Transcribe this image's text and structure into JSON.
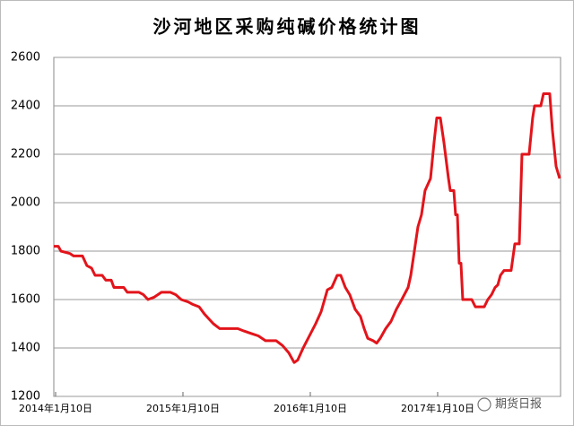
{
  "chart_data": {
    "type": "line",
    "title": "沙河地区采购纯碱价格统计图",
    "x": [
      2013.986,
      2014.021,
      2014.042,
      2014.113,
      2014.141,
      2014.211,
      2014.246,
      2014.282,
      2014.31,
      2014.366,
      2014.394,
      2014.437,
      2014.458,
      2014.535,
      2014.563,
      2014.655,
      2014.69,
      2014.725,
      2014.775,
      2014.831,
      2014.901,
      2014.944,
      2014.986,
      2015.042,
      2015.077,
      2015.127,
      2015.169,
      2015.204,
      2015.239,
      2015.289,
      2015.43,
      2015.479,
      2015.535,
      2015.592,
      2015.648,
      2015.732,
      2015.782,
      2015.831,
      2015.873,
      2015.901,
      2015.944,
      2015.993,
      2016.042,
      2016.085,
      2016.134,
      2016.169,
      2016.211,
      2016.239,
      2016.275,
      2016.31,
      2016.352,
      2016.394,
      2016.423,
      2016.451,
      2016.493,
      2016.521,
      2016.549,
      2016.592,
      2016.634,
      2016.676,
      2016.718,
      2016.768,
      2016.789,
      2016.817,
      2016.845,
      2016.873,
      2016.901,
      2016.944,
      2016.972,
      2016.993,
      2017.021,
      2017.049,
      2017.085,
      2017.099,
      2017.127,
      2017.141,
      2017.155,
      2017.169,
      2017.183,
      2017.197,
      2017.268,
      2017.296,
      2017.366,
      2017.394,
      2017.423,
      2017.451,
      2017.472,
      2017.493,
      2017.521,
      2017.577,
      2017.606,
      2017.641,
      2017.662,
      2017.718,
      2017.746,
      2017.761,
      2017.81,
      2017.831,
      2017.88,
      2017.901,
      2017.93,
      2017.958
    ],
    "series": [
      {
        "color": "#e3141b",
        "values": [
          1820,
          1820,
          1800,
          1790,
          1780,
          1780,
          1740,
          1730,
          1700,
          1700,
          1680,
          1680,
          1650,
          1650,
          1630,
          1630,
          1620,
          1600,
          1610,
          1630,
          1630,
          1620,
          1600,
          1590,
          1580,
          1570,
          1540,
          1520,
          1500,
          1480,
          1480,
          1470,
          1460,
          1450,
          1430,
          1430,
          1410,
          1380,
          1340,
          1350,
          1400,
          1450,
          1500,
          1550,
          1640,
          1650,
          1700,
          1700,
          1650,
          1620,
          1560,
          1530,
          1480,
          1440,
          1430,
          1420,
          1440,
          1480,
          1510,
          1560,
          1600,
          1650,
          1700,
          1800,
          1900,
          1950,
          2050,
          2100,
          2250,
          2350,
          2350,
          2250,
          2100,
          2050,
          2050,
          1950,
          1950,
          1750,
          1750,
          1600,
          1600,
          1570,
          1570,
          1600,
          1620,
          1650,
          1660,
          1700,
          1720,
          1720,
          1830,
          1830,
          2200,
          2200,
          2350,
          2400,
          2400,
          2450,
          2450,
          2300,
          2150,
          2100
        ]
      }
    ],
    "xlim": [
      2013.986,
      2017.965
    ],
    "xticks": [
      {
        "value": 2014,
        "label": "2014年1月10日"
      },
      {
        "value": 2015,
        "label": "2015年1月10日"
      },
      {
        "value": 2016,
        "label": "2016年1月10日"
      },
      {
        "value": 2017,
        "label": "2017年1月10日"
      }
    ],
    "ylim": [
      1200,
      2600
    ],
    "yticks": [
      1200,
      1400,
      1600,
      1800,
      2000,
      2200,
      2400,
      2600
    ],
    "grid": true,
    "watermark": "期货日报"
  }
}
